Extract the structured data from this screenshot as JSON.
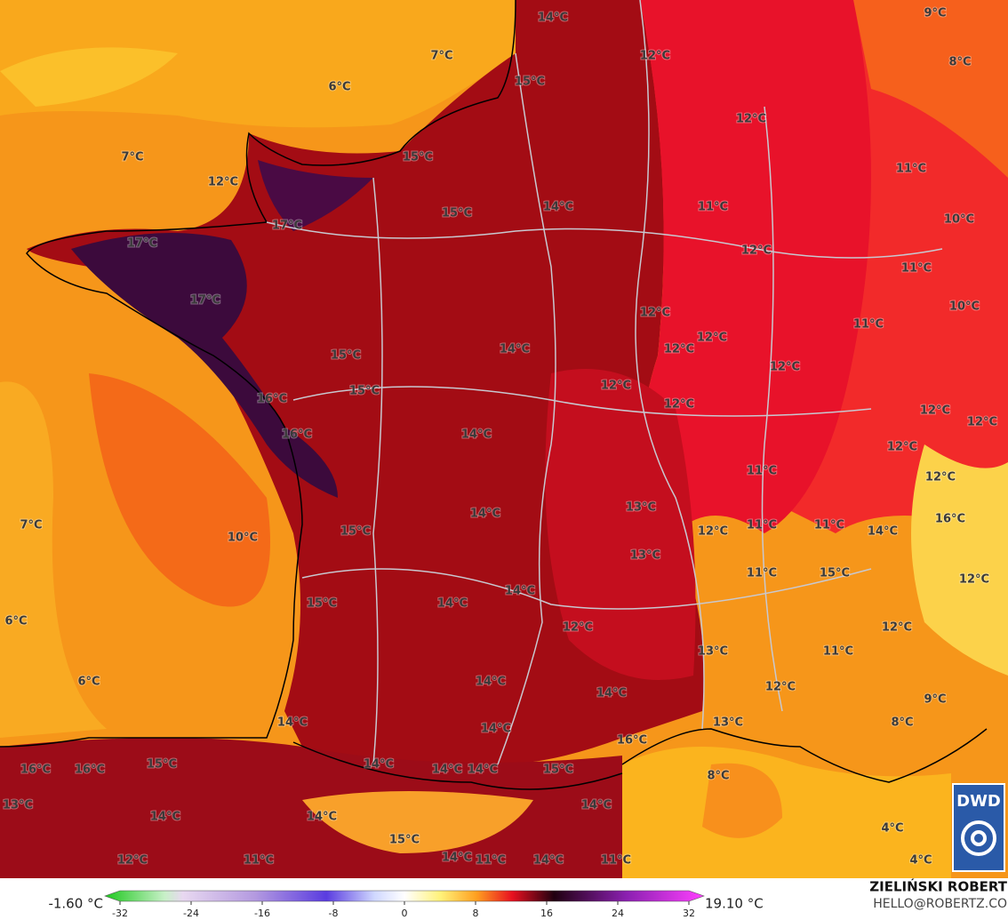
{
  "map": {
    "labels": [
      "14°C",
      "9°C",
      "7°C",
      "12°C",
      "8°C",
      "6°C",
      "15°C",
      "12°C",
      "7°C",
      "15°C",
      "11°C",
      "12°C",
      "11°C",
      "15°C",
      "14°C",
      "10°C",
      "17°C",
      "17°C",
      "12°C",
      "11°C",
      "17°C",
      "12°C",
      "10°C",
      "11°C",
      "12°C",
      "12°C",
      "14°C",
      "15°C",
      "12°C",
      "15°C",
      "12°C",
      "16°C",
      "12°C",
      "12°C",
      "12°C",
      "16°C",
      "14°C",
      "12°C",
      "11°C",
      "12°C",
      "13°C",
      "14°C",
      "16°C",
      "7°C",
      "11°C",
      "11°C",
      "12°C",
      "14°C",
      "15°C",
      "10°C",
      "13°C",
      "11°C",
      "15°C",
      "12°C",
      "14°C",
      "15°C",
      "14°C",
      "6°C",
      "12°C",
      "12°C",
      "13°C",
      "11°C",
      "14°C",
      "6°C",
      "12°C",
      "14°C",
      "9°C",
      "14°C",
      "8°C",
      "13°C",
      "14°C",
      "16°C",
      "16°C",
      "16°C",
      "15°C",
      "14°C",
      "14°C",
      "14°C",
      "15°C",
      "8°C",
      "13°C",
      "14°C",
      "14°C",
      "14°C",
      "15°C",
      "4°C",
      "12°C",
      "11°C",
      "14°C",
      "11°C",
      "14°C",
      "11°C",
      "4°C"
    ],
    "logo": "DWD"
  },
  "colorbar": {
    "min_label": "-1.60 °C",
    "max_label": "19.10 °C",
    "range": [
      -32,
      32
    ],
    "ticks": [
      -32,
      -24,
      -16,
      -8,
      0,
      8,
      16,
      24,
      32
    ]
  },
  "credits": {
    "author": "ZIELIŃSKI ROBERT",
    "contact": "HELLO@ROBERTZ.CO"
  }
}
